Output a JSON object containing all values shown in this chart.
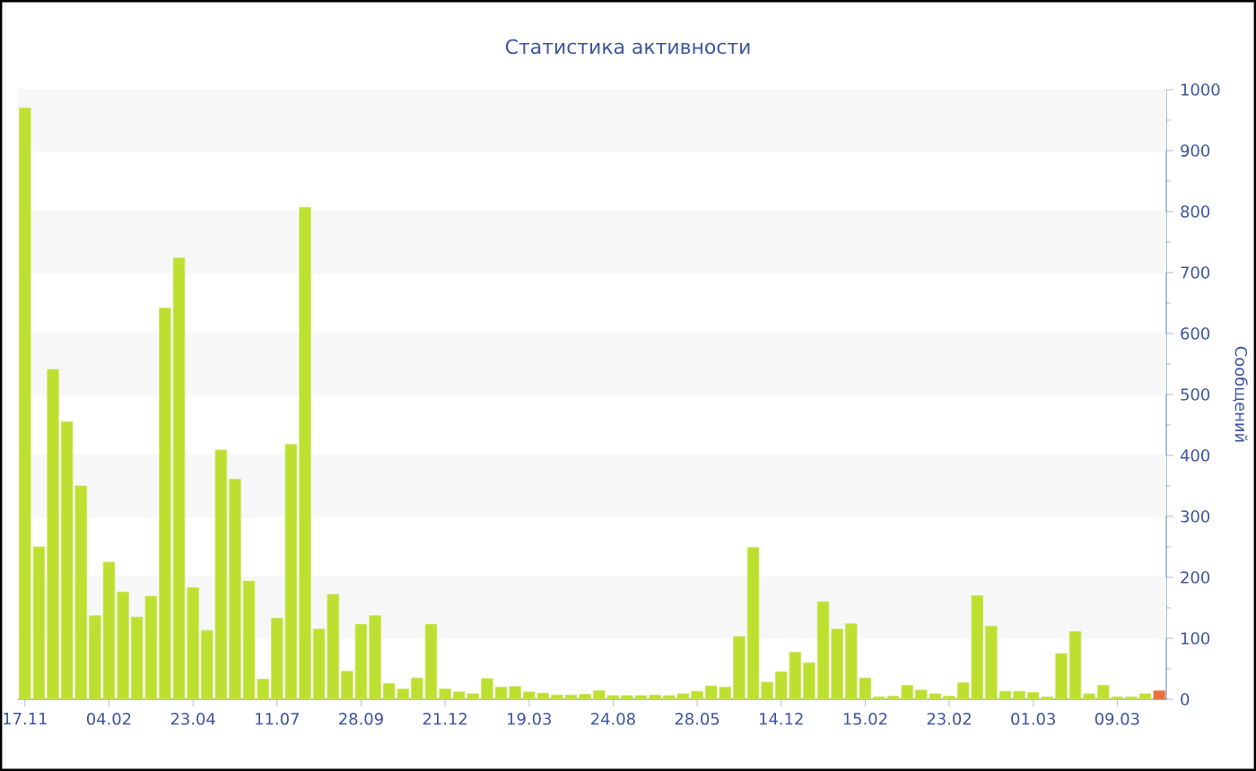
{
  "chart_data": {
    "type": "bar",
    "title": "Статистика активности",
    "ylabel": "Сообщений",
    "categories": [
      "17.11",
      null,
      null,
      null,
      null,
      null,
      "04.02",
      null,
      null,
      null,
      null,
      null,
      "23.04",
      null,
      null,
      null,
      null,
      null,
      "11.07",
      null,
      null,
      null,
      null,
      null,
      "28.09",
      null,
      null,
      null,
      null,
      null,
      "21.12",
      null,
      null,
      null,
      null,
      null,
      "19.03",
      null,
      null,
      null,
      null,
      null,
      "24.08",
      null,
      null,
      null,
      null,
      null,
      "28.05",
      null,
      null,
      null,
      null,
      null,
      "14.12",
      null,
      null,
      null,
      null,
      null,
      "15.02",
      null,
      null,
      null,
      null,
      null,
      "23.02",
      null,
      null,
      null,
      null,
      null,
      "01.03",
      null,
      null,
      null,
      null,
      null,
      "09.03",
      null,
      null,
      null
    ],
    "values": [
      970,
      250,
      541,
      455,
      350,
      137,
      225,
      176,
      135,
      169,
      642,
      724,
      183,
      113,
      409,
      361,
      194,
      33,
      133,
      418,
      807,
      115,
      172,
      46,
      123,
      137,
      26,
      17,
      35,
      123,
      17,
      12,
      9,
      34,
      20,
      21,
      12,
      10,
      7,
      7,
      8,
      14,
      6,
      6,
      6,
      7,
      6,
      9,
      13,
      22,
      20,
      103,
      249,
      28,
      45,
      77,
      60,
      160,
      115,
      124,
      35,
      4,
      5,
      23,
      15,
      9,
      5,
      27,
      170,
      120,
      13,
      13,
      11,
      4,
      75,
      111,
      9,
      23,
      4,
      4,
      9,
      14
    ],
    "colors": [
      "#bde030",
      "#bde030",
      "#bde030",
      "#bde030",
      "#bde030",
      "#bde030",
      "#bde030",
      "#bde030",
      "#bde030",
      "#bde030",
      "#bde030",
      "#bde030",
      "#bde030",
      "#bde030",
      "#bde030",
      "#bde030",
      "#bde030",
      "#bde030",
      "#bde030",
      "#bde030",
      "#bde030",
      "#bde030",
      "#bde030",
      "#bde030",
      "#bde030",
      "#bde030",
      "#bde030",
      "#bde030",
      "#bde030",
      "#bde030",
      "#bde030",
      "#bde030",
      "#bde030",
      "#bde030",
      "#bde030",
      "#bde030",
      "#bde030",
      "#bde030",
      "#bde030",
      "#bde030",
      "#bde030",
      "#bde030",
      "#bde030",
      "#bde030",
      "#bde030",
      "#bde030",
      "#bde030",
      "#bde030",
      "#bde030",
      "#bde030",
      "#bde030",
      "#bde030",
      "#bde030",
      "#bde030",
      "#bde030",
      "#bde030",
      "#bde030",
      "#bde030",
      "#bde030",
      "#bde030",
      "#bde030",
      "#bde030",
      "#bde030",
      "#bde030",
      "#bde030",
      "#bde030",
      "#bde030",
      "#bde030",
      "#bde030",
      "#bde030",
      "#bde030",
      "#bde030",
      "#bde030",
      "#bde030",
      "#bde030",
      "#bde030",
      "#bde030",
      "#bde030",
      "#bde030",
      "#bde030",
      "#bde030",
      "#e8703a"
    ],
    "ylim": [
      0,
      1000
    ],
    "yticks": [
      0,
      100,
      200,
      300,
      400,
      500,
      600,
      700,
      800,
      900,
      1000
    ],
    "grid": "y"
  }
}
